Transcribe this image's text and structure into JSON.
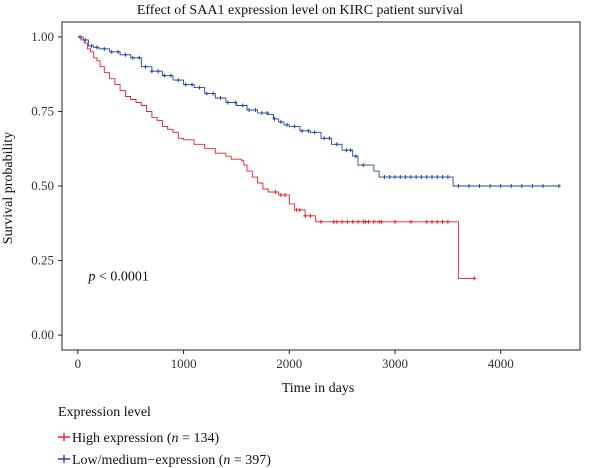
{
  "chart_data": {
    "type": "line",
    "title": "Effect of SAA1 expression level on KIRC patient survival",
    "xlabel": "Time in days",
    "ylabel": "Survival probability",
    "xlim": [
      -150,
      4750
    ],
    "ylim": [
      -0.05,
      1.05
    ],
    "xticks": [
      0,
      1000,
      2000,
      3000,
      4000
    ],
    "yticks": [
      0.0,
      0.25,
      0.5,
      0.75,
      1.0
    ],
    "xtick_labels": [
      "0",
      "1000",
      "2000",
      "3000",
      "4000"
    ],
    "ytick_labels": [
      "0.00",
      "0.25",
      "0.50",
      "0.75",
      "1.00"
    ],
    "grid": false,
    "legend_position": "bottom-left",
    "legend_title": "Expression level",
    "annotation": {
      "x": 100,
      "y": 0.2,
      "p_label": "p",
      "rest": " < 0.0001"
    },
    "series": [
      {
        "key": "high",
        "name_prefix": "High expression (",
        "n_label": "n",
        "name_suffix": " = 134)",
        "color": "#e8202a",
        "steps": [
          [
            0,
            1.0
          ],
          [
            30,
            0.99
          ],
          [
            60,
            0.98
          ],
          [
            90,
            0.96
          ],
          [
            120,
            0.95
          ],
          [
            150,
            0.93
          ],
          [
            180,
            0.92
          ],
          [
            210,
            0.9
          ],
          [
            250,
            0.88
          ],
          [
            300,
            0.86
          ],
          [
            350,
            0.84
          ],
          [
            400,
            0.82
          ],
          [
            450,
            0.8
          ],
          [
            500,
            0.79
          ],
          [
            550,
            0.78
          ],
          [
            600,
            0.77
          ],
          [
            650,
            0.75
          ],
          [
            700,
            0.73
          ],
          [
            750,
            0.72
          ],
          [
            800,
            0.7
          ],
          [
            850,
            0.69
          ],
          [
            900,
            0.68
          ],
          [
            950,
            0.66
          ],
          [
            1000,
            0.655
          ],
          [
            1100,
            0.64
          ],
          [
            1200,
            0.625
          ],
          [
            1300,
            0.61
          ],
          [
            1400,
            0.6
          ],
          [
            1450,
            0.59
          ],
          [
            1550,
            0.585
          ],
          [
            1570,
            0.57
          ],
          [
            1600,
            0.55
          ],
          [
            1650,
            0.53
          ],
          [
            1700,
            0.51
          ],
          [
            1750,
            0.49
          ],
          [
            1800,
            0.48
          ],
          [
            1900,
            0.47
          ],
          [
            2000,
            0.44
          ],
          [
            2050,
            0.42
          ],
          [
            2150,
            0.4
          ],
          [
            2250,
            0.38
          ],
          [
            3600,
            0.19
          ],
          [
            3750,
            0.19
          ]
        ],
        "censor_x": [
          1870,
          1920,
          1960,
          2070,
          2100,
          2150,
          2200,
          2300,
          2420,
          2450,
          2500,
          2550,
          2600,
          2650,
          2700,
          2720,
          2750,
          2800,
          2850,
          2870,
          3000,
          3150,
          3300,
          3350,
          3400,
          3450,
          3500,
          3750
        ]
      },
      {
        "key": "low",
        "name_prefix": "Low/medium−expression (",
        "n_label": "n",
        "name_suffix": " = 397)",
        "color": "#2545a6",
        "steps": [
          [
            0,
            1.0
          ],
          [
            50,
            0.99
          ],
          [
            100,
            0.97
          ],
          [
            150,
            0.965
          ],
          [
            200,
            0.96
          ],
          [
            300,
            0.95
          ],
          [
            400,
            0.94
          ],
          [
            500,
            0.93
          ],
          [
            600,
            0.9
          ],
          [
            700,
            0.885
          ],
          [
            800,
            0.87
          ],
          [
            900,
            0.855
          ],
          [
            1000,
            0.84
          ],
          [
            1100,
            0.83
          ],
          [
            1200,
            0.81
          ],
          [
            1300,
            0.795
          ],
          [
            1400,
            0.78
          ],
          [
            1500,
            0.77
          ],
          [
            1600,
            0.755
          ],
          [
            1700,
            0.745
          ],
          [
            1800,
            0.74
          ],
          [
            1850,
            0.725
          ],
          [
            1900,
            0.715
          ],
          [
            1950,
            0.705
          ],
          [
            2000,
            0.7
          ],
          [
            2100,
            0.685
          ],
          [
            2200,
            0.68
          ],
          [
            2300,
            0.66
          ],
          [
            2400,
            0.64
          ],
          [
            2500,
            0.62
          ],
          [
            2600,
            0.6
          ],
          [
            2650,
            0.57
          ],
          [
            2800,
            0.55
          ],
          [
            2850,
            0.53
          ],
          [
            3550,
            0.5
          ],
          [
            4550,
            0.5
          ]
        ],
        "censor_x": [
          20,
          70,
          130,
          180,
          250,
          320,
          380,
          450,
          520,
          580,
          640,
          700,
          760,
          820,
          880,
          950,
          1020,
          1080,
          1150,
          1220,
          1280,
          1350,
          1420,
          1490,
          1560,
          1620,
          1680,
          1740,
          1790,
          1860,
          1920,
          1980,
          2050,
          2120,
          2180,
          2240,
          2330,
          2380,
          2450,
          2540,
          2580,
          2630,
          2700,
          2900,
          2950,
          3000,
          3050,
          3100,
          3150,
          3200,
          3250,
          3300,
          3350,
          3400,
          3450,
          3500,
          3600,
          3700,
          3800,
          3900,
          4000,
          4100,
          4200,
          4300,
          4400,
          4550
        ]
      }
    ]
  }
}
